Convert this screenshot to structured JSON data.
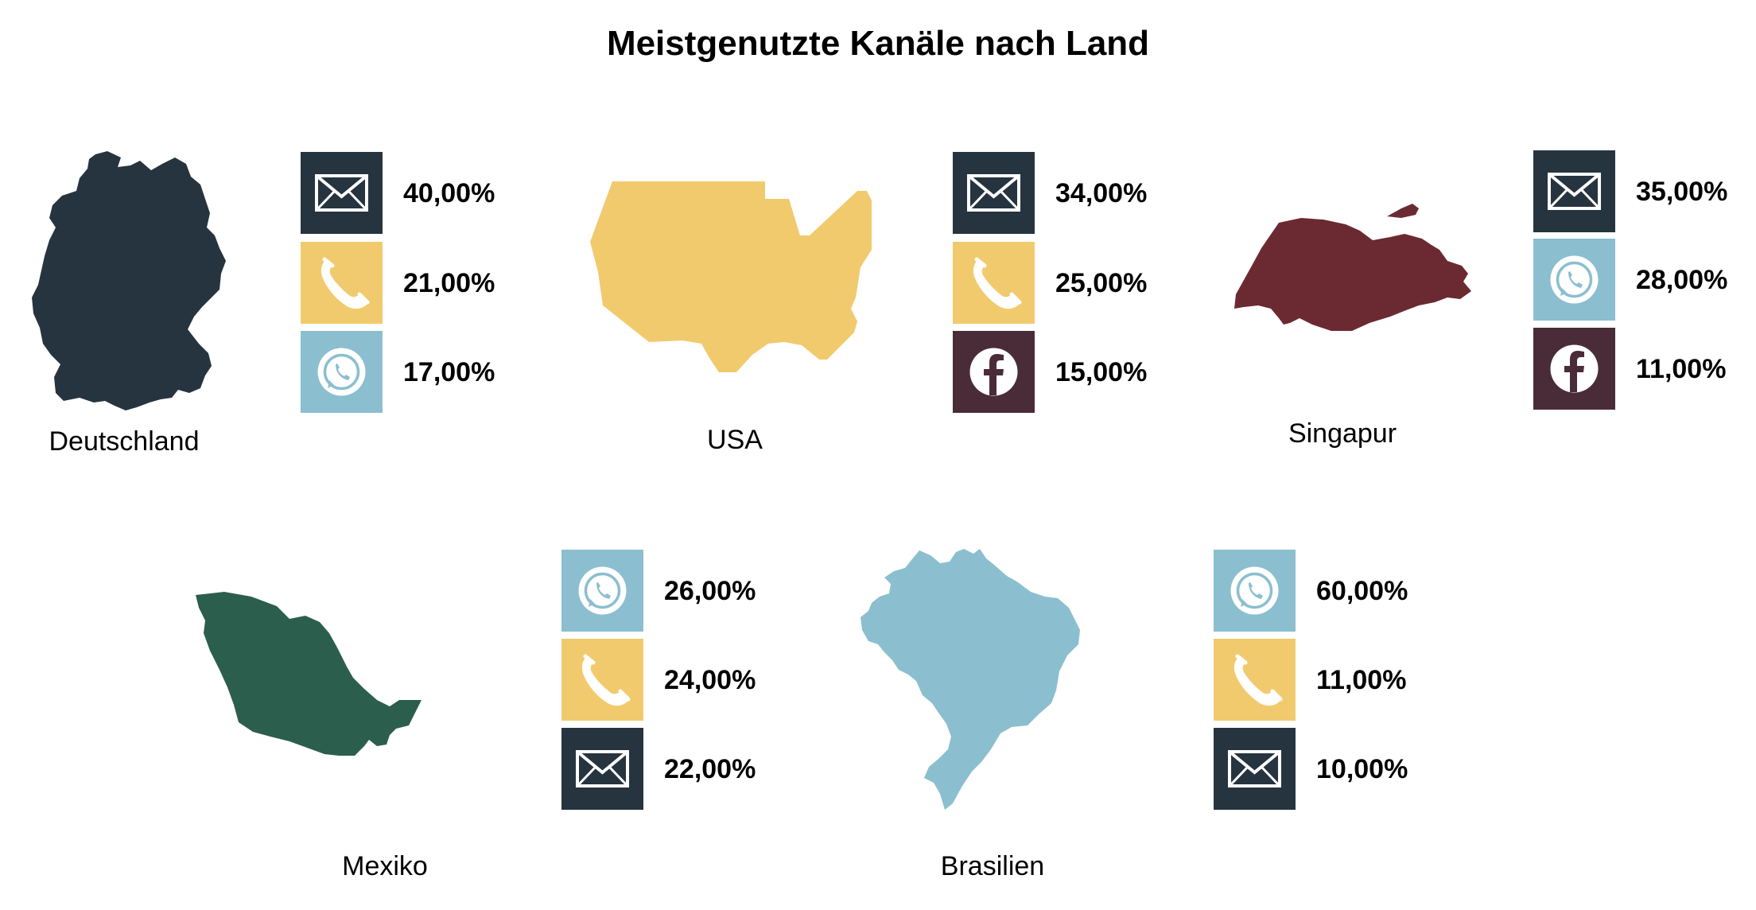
{
  "chart_data": {
    "type": "table",
    "title": "Meistgenutzte Kanäle nach Land",
    "countries": [
      {
        "name": "Deutschland",
        "color": "#263440",
        "channels": [
          {
            "icon": "mail-icon",
            "tile_color": "#263440",
            "value": 40,
            "label": "40,00%"
          },
          {
            "icon": "phone-icon",
            "tile_color": "#f2ca6e",
            "value": 21,
            "label": "21,00%"
          },
          {
            "icon": "whatsapp-icon",
            "tile_color": "#8bbfcf",
            "value": 17,
            "label": "17,00%"
          }
        ]
      },
      {
        "name": "USA",
        "color": "#f2ca6e",
        "channels": [
          {
            "icon": "mail-icon",
            "tile_color": "#263440",
            "value": 34,
            "label": "34,00%"
          },
          {
            "icon": "phone-icon",
            "tile_color": "#f2ca6e",
            "value": 25,
            "label": "25,00%"
          },
          {
            "icon": "facebook-icon",
            "tile_color": "#4a2c38",
            "value": 15,
            "label": "15,00%"
          }
        ]
      },
      {
        "name": "Singapur",
        "color": "#6b2a31",
        "channels": [
          {
            "icon": "mail-icon",
            "tile_color": "#263440",
            "value": 35,
            "label": "35,00%"
          },
          {
            "icon": "whatsapp-icon",
            "tile_color": "#8bbfcf",
            "value": 28,
            "label": "28,00%"
          },
          {
            "icon": "facebook-icon",
            "tile_color": "#4a2c38",
            "value": 11,
            "label": "11,00%"
          }
        ]
      },
      {
        "name": "Mexiko",
        "color": "#2c5e4d",
        "channels": [
          {
            "icon": "whatsapp-icon",
            "tile_color": "#8bbfcf",
            "value": 26,
            "label": "26,00%"
          },
          {
            "icon": "phone-icon",
            "tile_color": "#f2ca6e",
            "value": 24,
            "label": "24,00%"
          },
          {
            "icon": "mail-icon",
            "tile_color": "#263440",
            "value": 22,
            "label": "22,00%"
          }
        ]
      },
      {
        "name": "Brasilien",
        "color": "#8bbfcf",
        "channels": [
          {
            "icon": "whatsapp-icon",
            "tile_color": "#8bbfcf",
            "value": 60,
            "label": "60,00%"
          },
          {
            "icon": "phone-icon",
            "tile_color": "#f2ca6e",
            "value": 11,
            "label": "11,00%"
          },
          {
            "icon": "mail-icon",
            "tile_color": "#263440",
            "value": 10,
            "label": "10,00%"
          }
        ]
      }
    ]
  }
}
